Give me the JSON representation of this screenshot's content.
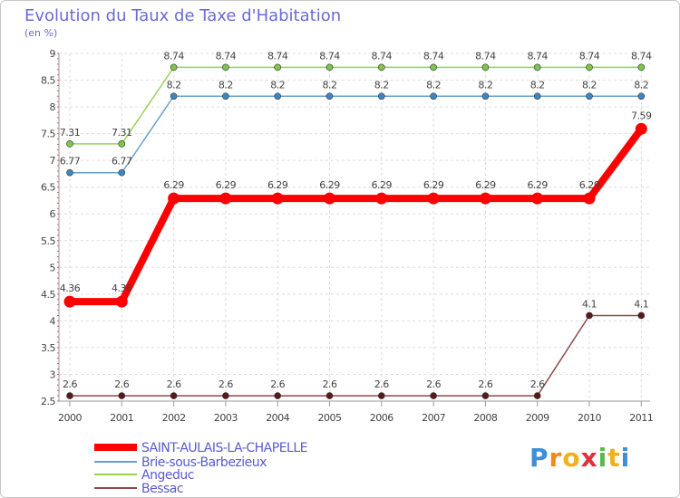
{
  "chart_data": {
    "type": "line",
    "title": "Evolution du Taux de Taxe d'Habitation",
    "subtitle": "(en %)",
    "xlabel": "",
    "ylabel": "",
    "categories": [
      "2000",
      "2001",
      "2002",
      "2003",
      "2004",
      "2005",
      "2006",
      "2007",
      "2008",
      "2009",
      "2010",
      "2011"
    ],
    "ylim": [
      2.5,
      9
    ],
    "yticks": [
      2.5,
      3,
      3.5,
      4,
      4.5,
      5,
      5.5,
      6,
      6.5,
      7,
      7.5,
      8,
      8.5,
      9
    ],
    "ytick_labels": [
      "2.5",
      "3",
      "3.5",
      "4",
      "4.5",
      "5",
      "5.5",
      "6",
      "6.5",
      "7",
      "7.5",
      "8",
      "8.5",
      "9"
    ],
    "grid": true,
    "legend_position": "bottom-left",
    "series": [
      {
        "name": "SAINT-AULAIS-LA-CHAPELLE",
        "color": "#ff0000",
        "marker_color": "#ff0000",
        "emphasis": true,
        "values": [
          4.36,
          4.36,
          6.29,
          6.29,
          6.29,
          6.29,
          6.29,
          6.29,
          6.29,
          6.29,
          6.29,
          7.59
        ],
        "labels": [
          "4.36",
          "4.36",
          "6.29",
          "6.29",
          "6.29",
          "6.29",
          "6.29",
          "6.29",
          "6.29",
          "6.29",
          "6.29",
          "7.59"
        ]
      },
      {
        "name": "Brie-sous-Barbezieux",
        "color": "#6aa0c8",
        "marker_color": "#3f86c0",
        "emphasis": false,
        "values": [
          6.77,
          6.77,
          8.2,
          8.2,
          8.2,
          8.2,
          8.2,
          8.2,
          8.2,
          8.2,
          8.2,
          8.2
        ],
        "labels": [
          "6.77",
          "6.77",
          "8.2",
          "8.2",
          "8.2",
          "8.2",
          "8.2",
          "8.2",
          "8.2",
          "8.2",
          "8.2",
          "8.2"
        ]
      },
      {
        "name": "Angeduc",
        "color": "#96d25a",
        "marker_color": "#7cc846",
        "emphasis": false,
        "values": [
          7.31,
          7.31,
          8.74,
          8.74,
          8.74,
          8.74,
          8.74,
          8.74,
          8.74,
          8.74,
          8.74,
          8.74
        ],
        "labels": [
          "7.31",
          "7.31",
          "8.74",
          "8.74",
          "8.74",
          "8.74",
          "8.74",
          "8.74",
          "8.74",
          "8.74",
          "8.74",
          "8.74"
        ]
      },
      {
        "name": "Bessac",
        "color": "#8c4a4a",
        "marker_color": "#5a1a1a",
        "emphasis": false,
        "values": [
          2.6,
          2.6,
          2.6,
          2.6,
          2.6,
          2.6,
          2.6,
          2.6,
          2.6,
          2.6,
          4.1,
          4.1
        ],
        "labels": [
          "2.6",
          "2.6",
          "2.6",
          "2.6",
          "2.6",
          "2.6",
          "2.6",
          "2.6",
          "2.6",
          "2.6",
          "4.1",
          "4.1"
        ]
      }
    ]
  },
  "logo": {
    "letters": [
      "P",
      "r",
      "o",
      "x",
      "i",
      "t",
      "i"
    ],
    "colors": [
      "#3c8fd8",
      "#f08a1c",
      "#f0b020",
      "#e03040",
      "#58b848",
      "#f0b020",
      "#3c8fd8"
    ]
  }
}
